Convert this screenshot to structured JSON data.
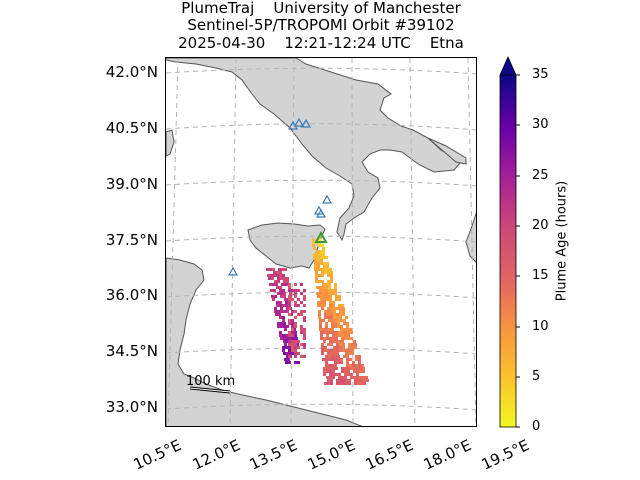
{
  "title": {
    "line1": "PlumeTraj    University of Manchester",
    "line2": "Sentinel-5P/TROPOMI Orbit #39102",
    "line3": "2025-04-30    12:21-12:24 UTC    Etna"
  },
  "map": {
    "lat_labels": [
      "42.0°N",
      "40.5°N",
      "39.0°N",
      "37.5°N",
      "36.0°N",
      "34.5°N",
      "33.0°N"
    ],
    "lon_labels": [
      "10.5°E",
      "12.0°E",
      "13.5°E",
      "15.0°E",
      "16.5°E",
      "18.0°E",
      "19.5°E"
    ],
    "scale_bar_label": "100 km",
    "land_color": "#d3d3d3",
    "coast_color": "#555555",
    "grid_color": "#b4b4b4",
    "volcano_marker_color": "#3a9a2e",
    "other_volcano_color": "#3a7cb8"
  },
  "colorbar": {
    "label": "Plume Age (hours)",
    "ticks": [
      "0",
      "5",
      "10",
      "15",
      "20",
      "25",
      "30",
      "35"
    ],
    "min": 0,
    "max": 35,
    "colormap": "plasma_r"
  }
}
